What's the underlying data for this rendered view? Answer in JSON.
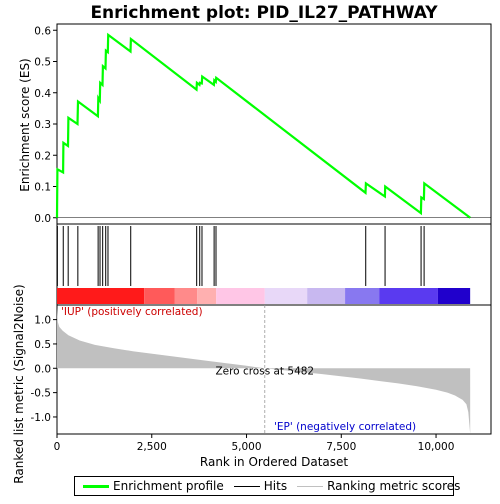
{
  "chart_data": {
    "type": "line",
    "title": "Enrichment plot: PID_IL27_PATHWAY",
    "es_panel": {
      "ylabel": "Enrichment score (ES)",
      "ylim": [
        -0.02,
        0.62
      ],
      "yticks": [
        0.0,
        0.1,
        0.2,
        0.3,
        0.4,
        0.5,
        0.6
      ],
      "ytick_labels": [
        "0.0",
        "0.1",
        "0.2",
        "0.3",
        "0.4",
        "0.5",
        "0.6"
      ],
      "series": [
        {
          "color": "#00ff00",
          "x": [
            0,
            10,
            160,
            170,
            290,
            300,
            540,
            555,
            1080,
            1090,
            1130,
            1140,
            1200,
            1210,
            1280,
            1290,
            1340,
            1350,
            1940,
            1950,
            3680,
            3690,
            3760,
            3770,
            3820,
            3830,
            4140,
            4150,
            4190,
            4200,
            8140,
            8150,
            8650,
            8660,
            9600,
            9610,
            9680,
            9690,
            10900
          ],
          "values": [
            0.0,
            0.155,
            0.145,
            0.24,
            0.23,
            0.32,
            0.3,
            0.372,
            0.325,
            0.383,
            0.375,
            0.432,
            0.425,
            0.485,
            0.478,
            0.535,
            0.53,
            0.585,
            0.532,
            0.572,
            0.41,
            0.432,
            0.425,
            0.432,
            0.43,
            0.452,
            0.425,
            0.44,
            0.435,
            0.448,
            0.08,
            0.11,
            0.068,
            0.1,
            0.015,
            0.065,
            0.06,
            0.11,
            0.0
          ]
        }
      ]
    },
    "hits": {
      "positions": [
        10,
        165,
        295,
        550,
        1085,
        1135,
        1205,
        1285,
        1345,
        1945,
        3685,
        3765,
        3825,
        4145,
        4195,
        8145,
        8655,
        9605,
        9685
      ]
    },
    "heatmap_bar": {
      "segments": [
        {
          "from": 0,
          "to": 2300,
          "color": "#ff1a1a"
        },
        {
          "from": 2300,
          "to": 3100,
          "color": "#ff5a5a"
        },
        {
          "from": 3100,
          "to": 3700,
          "color": "#ff8a8a"
        },
        {
          "from": 3700,
          "to": 4200,
          "color": "#ffb0b0"
        },
        {
          "from": 4200,
          "to": 5482,
          "color": "#ffc6e6"
        },
        {
          "from": 5482,
          "to": 6600,
          "color": "#e8d8f8"
        },
        {
          "from": 6600,
          "to": 7600,
          "color": "#c8b8f0"
        },
        {
          "from": 7600,
          "to": 8500,
          "color": "#8878f0"
        },
        {
          "from": 8500,
          "to": 10050,
          "color": "#5a3af0"
        },
        {
          "from": 10050,
          "to": 10900,
          "color": "#2000cc"
        }
      ]
    },
    "metric_panel": {
      "ylabel": "Ranked list metric (Signal2Noise)",
      "ylim": [
        -1.35,
        1.3
      ],
      "yticks": [
        -1.0,
        -0.5,
        0.0,
        0.5,
        1.0
      ],
      "ytick_labels": [
        "-1.0",
        "-0.5",
        "0.0",
        "0.5",
        "1.0"
      ],
      "profile_x": [
        0,
        20,
        60,
        150,
        300,
        600,
        1000,
        1500,
        2000,
        3000,
        4000,
        5000,
        5482,
        6000,
        7000,
        8000,
        9000,
        9500,
        10000,
        10300,
        10500,
        10700,
        10800,
        10850,
        10900
      ],
      "profile_y": [
        1.25,
        0.95,
        0.85,
        0.77,
        0.68,
        0.57,
        0.48,
        0.41,
        0.35,
        0.25,
        0.15,
        0.05,
        0.0,
        -0.04,
        -0.12,
        -0.21,
        -0.31,
        -0.37,
        -0.44,
        -0.5,
        -0.56,
        -0.65,
        -0.74,
        -0.9,
        -1.35
      ],
      "fill_color": "#c0c0c0",
      "zero_cross_label": "Zero cross at 5482",
      "zero_cross_x": 5482,
      "pos_label": "'IUP' (positively correlated)",
      "neg_label": "'EP' (negatively correlated)"
    },
    "x_axis": {
      "xlabel": "Rank in Ordered Dataset",
      "xlim": [
        0,
        11450
      ],
      "xticks": [
        0,
        2500,
        5000,
        7500,
        10000
      ],
      "xtick_labels": [
        "0",
        "2,500",
        "5,000",
        "7,500",
        "10,000"
      ]
    },
    "legend": {
      "items": [
        {
          "label": "Enrichment profile",
          "color": "#00ff00"
        },
        {
          "label": "Hits",
          "color": "#000000"
        },
        {
          "label": "Ranking metric scores",
          "color": "#c0c0c0"
        }
      ]
    }
  }
}
